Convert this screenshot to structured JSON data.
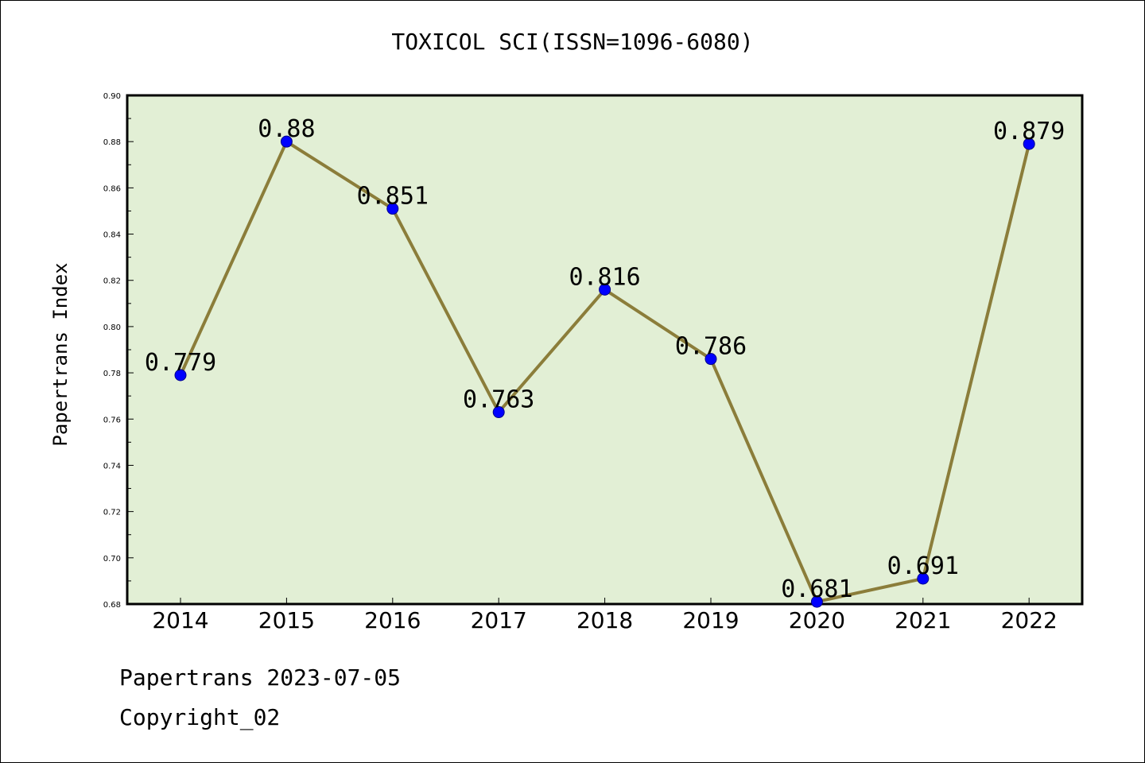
{
  "chart_data": {
    "type": "line",
    "title": "TOXICOL SCI(ISSN=1096-6080)",
    "xlabel": "",
    "ylabel": "Papertrans Index",
    "ylim": [
      0.68,
      0.9
    ],
    "yticks": [
      "0.68",
      "0.70",
      "0.72",
      "0.74",
      "0.76",
      "0.78",
      "0.80",
      "0.82",
      "0.84",
      "0.86",
      "0.88",
      "0.90"
    ],
    "categories": [
      "2014",
      "2015",
      "2016",
      "2017",
      "2018",
      "2019",
      "2020",
      "2021",
      "2022"
    ],
    "values": [
      0.779,
      0.88,
      0.851,
      0.763,
      0.816,
      0.786,
      0.681,
      0.691,
      0.879
    ],
    "data_labels": [
      "0.779",
      "0.88",
      "0.851",
      "0.763",
      "0.816",
      "0.786",
      "0.681",
      "0.691",
      "0.879"
    ],
    "grid": false,
    "colors": {
      "plot_bg": "#e2efd5",
      "line": "#8b7d3a",
      "marker": "#0000ff"
    }
  },
  "footer": {
    "line1": "Papertrans 2023-07-05",
    "line2": "Copyright_02"
  }
}
